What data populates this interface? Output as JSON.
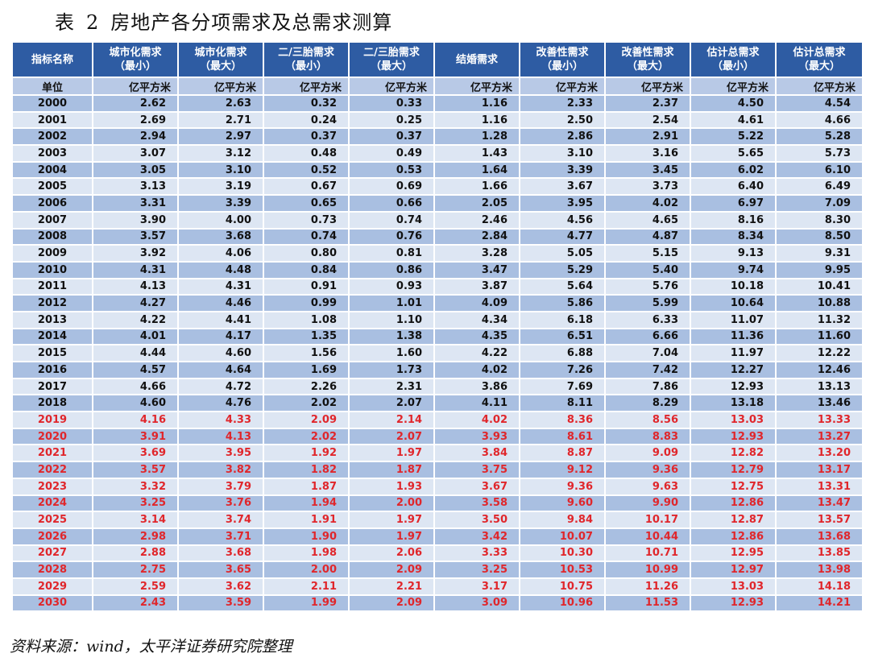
{
  "title": {
    "prefix": "表",
    "number": "2",
    "text": "房地产各分项需求及总需求测算"
  },
  "headers": [
    {
      "line1": "指标名称",
      "line2": ""
    },
    {
      "line1": "城市化需求",
      "line2": "（最小）"
    },
    {
      "line1": "城市化需求",
      "line2": "（最大）"
    },
    {
      "line1": "二/三胎需求",
      "line2": "（最小）"
    },
    {
      "line1": "二/三胎需求",
      "line2": "（最大）"
    },
    {
      "line1": "结婚需求",
      "line2": ""
    },
    {
      "line1": "改善性需求",
      "line2": "（最小）"
    },
    {
      "line1": "改善性需求",
      "line2": "（最大）"
    },
    {
      "line1": "估计总需求",
      "line2": "（最小）"
    },
    {
      "line1": "估计总需求",
      "line2": "（最大）"
    }
  ],
  "unit_row": [
    "单位",
    "亿平方米",
    "亿平方米",
    "亿平方米",
    "亿平方米",
    "亿平方米",
    "亿平方米",
    "亿平方米",
    "亿平方米",
    "亿平方米"
  ],
  "rows": [
    {
      "year": "2000",
      "forecast": false,
      "v": [
        "2.62",
        "2.63",
        "0.32",
        "0.33",
        "1.16",
        "2.33",
        "2.37",
        "4.50",
        "4.54"
      ]
    },
    {
      "year": "2001",
      "forecast": false,
      "v": [
        "2.69",
        "2.71",
        "0.24",
        "0.25",
        "1.16",
        "2.50",
        "2.54",
        "4.61",
        "4.66"
      ]
    },
    {
      "year": "2002",
      "forecast": false,
      "v": [
        "2.94",
        "2.97",
        "0.37",
        "0.37",
        "1.28",
        "2.86",
        "2.91",
        "5.22",
        "5.28"
      ]
    },
    {
      "year": "2003",
      "forecast": false,
      "v": [
        "3.07",
        "3.12",
        "0.48",
        "0.49",
        "1.43",
        "3.10",
        "3.16",
        "5.65",
        "5.73"
      ]
    },
    {
      "year": "2004",
      "forecast": false,
      "v": [
        "3.05",
        "3.10",
        "0.52",
        "0.53",
        "1.64",
        "3.39",
        "3.45",
        "6.02",
        "6.10"
      ]
    },
    {
      "year": "2005",
      "forecast": false,
      "v": [
        "3.13",
        "3.19",
        "0.67",
        "0.69",
        "1.66",
        "3.67",
        "3.73",
        "6.40",
        "6.49"
      ]
    },
    {
      "year": "2006",
      "forecast": false,
      "v": [
        "3.31",
        "3.39",
        "0.65",
        "0.66",
        "2.05",
        "3.95",
        "4.02",
        "6.97",
        "7.09"
      ]
    },
    {
      "year": "2007",
      "forecast": false,
      "v": [
        "3.90",
        "4.00",
        "0.73",
        "0.74",
        "2.46",
        "4.56",
        "4.65",
        "8.16",
        "8.30"
      ]
    },
    {
      "year": "2008",
      "forecast": false,
      "v": [
        "3.57",
        "3.68",
        "0.74",
        "0.76",
        "2.84",
        "4.77",
        "4.87",
        "8.34",
        "8.50"
      ]
    },
    {
      "year": "2009",
      "forecast": false,
      "v": [
        "3.92",
        "4.06",
        "0.80",
        "0.81",
        "3.28",
        "5.05",
        "5.15",
        "9.13",
        "9.31"
      ]
    },
    {
      "year": "2010",
      "forecast": false,
      "v": [
        "4.31",
        "4.48",
        "0.84",
        "0.86",
        "3.47",
        "5.29",
        "5.40",
        "9.74",
        "9.95"
      ]
    },
    {
      "year": "2011",
      "forecast": false,
      "v": [
        "4.13",
        "4.31",
        "0.91",
        "0.93",
        "3.87",
        "5.64",
        "5.76",
        "10.18",
        "10.41"
      ]
    },
    {
      "year": "2012",
      "forecast": false,
      "v": [
        "4.27",
        "4.46",
        "0.99",
        "1.01",
        "4.09",
        "5.86",
        "5.99",
        "10.64",
        "10.88"
      ]
    },
    {
      "year": "2013",
      "forecast": false,
      "v": [
        "4.22",
        "4.41",
        "1.08",
        "1.10",
        "4.34",
        "6.18",
        "6.33",
        "11.07",
        "11.32"
      ]
    },
    {
      "year": "2014",
      "forecast": false,
      "v": [
        "4.01",
        "4.17",
        "1.35",
        "1.38",
        "4.35",
        "6.51",
        "6.66",
        "11.36",
        "11.60"
      ]
    },
    {
      "year": "2015",
      "forecast": false,
      "v": [
        "4.44",
        "4.60",
        "1.56",
        "1.60",
        "4.22",
        "6.88",
        "7.04",
        "11.97",
        "12.22"
      ]
    },
    {
      "year": "2016",
      "forecast": false,
      "v": [
        "4.57",
        "4.64",
        "1.69",
        "1.73",
        "4.02",
        "7.26",
        "7.42",
        "12.27",
        "12.46"
      ]
    },
    {
      "year": "2017",
      "forecast": false,
      "v": [
        "4.66",
        "4.72",
        "2.26",
        "2.31",
        "3.86",
        "7.69",
        "7.86",
        "12.93",
        "13.13"
      ]
    },
    {
      "year": "2018",
      "forecast": false,
      "v": [
        "4.60",
        "4.76",
        "2.02",
        "2.07",
        "4.11",
        "8.11",
        "8.29",
        "13.18",
        "13.46"
      ]
    },
    {
      "year": "2019",
      "forecast": true,
      "v": [
        "4.16",
        "4.33",
        "2.09",
        "2.14",
        "4.02",
        "8.36",
        "8.56",
        "13.03",
        "13.33"
      ]
    },
    {
      "year": "2020",
      "forecast": true,
      "v": [
        "3.91",
        "4.13",
        "2.02",
        "2.07",
        "3.93",
        "8.61",
        "8.83",
        "12.93",
        "13.27"
      ]
    },
    {
      "year": "2021",
      "forecast": true,
      "v": [
        "3.69",
        "3.95",
        "1.92",
        "1.97",
        "3.84",
        "8.87",
        "9.09",
        "12.82",
        "13.20"
      ]
    },
    {
      "year": "2022",
      "forecast": true,
      "v": [
        "3.57",
        "3.82",
        "1.82",
        "1.87",
        "3.75",
        "9.12",
        "9.36",
        "12.79",
        "13.17"
      ]
    },
    {
      "year": "2023",
      "forecast": true,
      "v": [
        "3.32",
        "3.79",
        "1.87",
        "1.93",
        "3.67",
        "9.36",
        "9.63",
        "12.75",
        "13.31"
      ]
    },
    {
      "year": "2024",
      "forecast": true,
      "v": [
        "3.25",
        "3.76",
        "1.94",
        "2.00",
        "3.58",
        "9.60",
        "9.90",
        "12.86",
        "13.47"
      ]
    },
    {
      "year": "2025",
      "forecast": true,
      "v": [
        "3.14",
        "3.74",
        "1.91",
        "1.97",
        "3.50",
        "9.84",
        "10.17",
        "12.87",
        "13.57"
      ]
    },
    {
      "year": "2026",
      "forecast": true,
      "v": [
        "2.98",
        "3.71",
        "1.90",
        "1.97",
        "3.42",
        "10.07",
        "10.44",
        "12.86",
        "13.68"
      ]
    },
    {
      "year": "2027",
      "forecast": true,
      "v": [
        "2.88",
        "3.68",
        "1.98",
        "2.06",
        "3.33",
        "10.30",
        "10.71",
        "12.95",
        "13.85"
      ]
    },
    {
      "year": "2028",
      "forecast": true,
      "v": [
        "2.75",
        "3.65",
        "2.00",
        "2.09",
        "3.25",
        "10.53",
        "10.99",
        "12.97",
        "13.98"
      ]
    },
    {
      "year": "2029",
      "forecast": true,
      "v": [
        "2.59",
        "3.62",
        "2.11",
        "2.21",
        "3.17",
        "10.75",
        "11.26",
        "13.03",
        "14.18"
      ]
    },
    {
      "year": "2030",
      "forecast": true,
      "v": [
        "2.43",
        "3.59",
        "1.99",
        "2.09",
        "3.09",
        "10.96",
        "11.53",
        "12.93",
        "14.21"
      ]
    }
  ],
  "source": "资料来源：wind，太平洋证券研究院整理",
  "colors": {
    "header_bg": "#2e5ca3",
    "row_dark": "#a9bfe1",
    "row_light": "#dde6f3",
    "forecast_text": "#e0262b"
  }
}
